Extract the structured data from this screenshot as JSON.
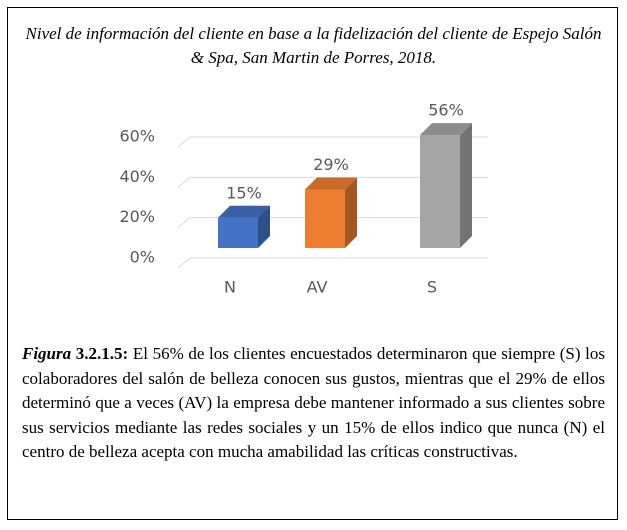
{
  "chart_data": {
    "type": "bar3d",
    "title": "Nivel de información del cliente en base a la fidelización del cliente de Espejo Salón & Spa, San Martin de Porres, 2018.",
    "categories": [
      "N",
      "AV",
      "S"
    ],
    "values": [
      15,
      29,
      56
    ],
    "value_labels": [
      "15%",
      "29%",
      "56%"
    ],
    "colors": [
      "#4472c4",
      "#ed7d31",
      "#a5a5a5"
    ],
    "ylim": [
      0,
      60
    ],
    "yticks": [
      {
        "value": 0,
        "label": "0%"
      },
      {
        "value": 20,
        "label": "20%"
      },
      {
        "value": 40,
        "label": "40%"
      },
      {
        "value": 60,
        "label": "60%"
      }
    ],
    "grid": true
  },
  "caption": {
    "label": "Figura",
    "number": "3.2.1.5:",
    "text": "El 56% de los clientes encuestados determinaron que siempre (S) los colaboradores del salón de belleza conocen sus gustos, mientras que el 29% de ellos determinó que a veces (AV) la empresa debe mantener informado a sus clientes sobre sus servicios mediante las redes sociales y un 15% de ellos indico que nunca (N) el centro de belleza acepta con mucha amabilidad las críticas constructivas."
  }
}
